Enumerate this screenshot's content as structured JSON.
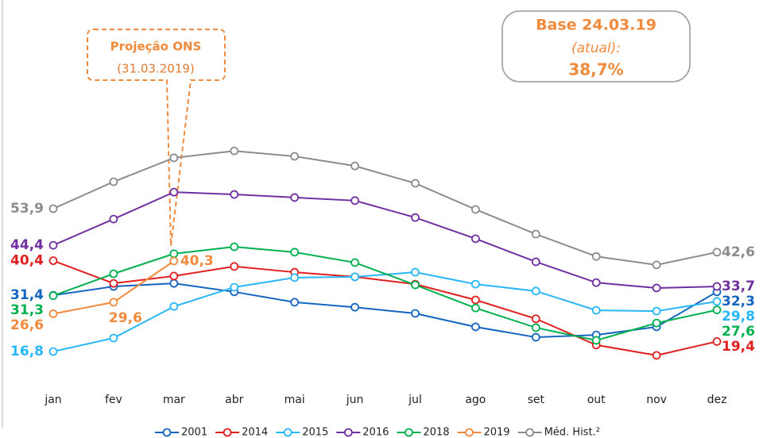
{
  "chart_data": {
    "type": "line",
    "categories": [
      "jan",
      "fev",
      "mar",
      "abr",
      "mai",
      "jun",
      "jul",
      "ago",
      "set",
      "out",
      "nov",
      "dez"
    ],
    "ylim": [
      10,
      75
    ],
    "series": [
      {
        "name": "2001",
        "color": "#1565c0",
        "values": [
          31.4,
          33.7,
          34.5,
          32.3,
          29.6,
          28.3,
          26.7,
          23.2,
          20.5,
          21.1,
          23.2,
          32.3
        ],
        "value_labels": [
          "31,4",
          null,
          null,
          null,
          null,
          null,
          null,
          null,
          null,
          null,
          null,
          "32,3"
        ]
      },
      {
        "name": "2014",
        "color": "#e02020",
        "values": [
          40.4,
          34.5,
          36.4,
          38.9,
          37.4,
          36.2,
          34.3,
          30.2,
          25.3,
          18.5,
          15.8,
          19.4
        ],
        "value_labels": [
          "40,4",
          null,
          null,
          null,
          null,
          null,
          null,
          null,
          null,
          null,
          null,
          "19,4"
        ]
      },
      {
        "name": "2015",
        "color": "#29b6f6",
        "values": [
          16.8,
          20.3,
          28.5,
          33.5,
          36.0,
          36.2,
          37.4,
          34.3,
          32.5,
          27.5,
          27.3,
          29.8
        ],
        "value_labels": [
          "16,8",
          null,
          null,
          null,
          null,
          null,
          null,
          null,
          null,
          null,
          null,
          "29,8"
        ]
      },
      {
        "name": "2016",
        "color": "#7030a0",
        "values": [
          44.4,
          51.2,
          58.2,
          57.6,
          56.8,
          56.0,
          51.6,
          46.1,
          40.1,
          34.7,
          33.3,
          33.7
        ],
        "value_labels": [
          "44,4",
          null,
          null,
          null,
          null,
          null,
          null,
          null,
          null,
          null,
          null,
          "33,7"
        ]
      },
      {
        "name": "2018",
        "color": "#00b050",
        "values": [
          31.3,
          37.0,
          42.2,
          44.0,
          42.6,
          39.9,
          34.1,
          28.1,
          23.0,
          19.7,
          24.2,
          27.6
        ],
        "value_labels": [
          "31,3",
          null,
          null,
          null,
          null,
          null,
          null,
          null,
          null,
          null,
          null,
          "27,6"
        ]
      },
      {
        "name": "2019",
        "color": "#f08a3c",
        "values": [
          26.6,
          29.6,
          40.3,
          null,
          null,
          null,
          null,
          null,
          null,
          null,
          null,
          null
        ],
        "value_labels": [
          "26,6",
          "29,6",
          "40,3",
          null,
          null,
          null,
          null,
          null,
          null,
          null,
          null,
          null
        ]
      },
      {
        "name": "Méd. Hist.²",
        "color": "#8c8c8c",
        "values": [
          53.9,
          60.9,
          67.1,
          68.9,
          67.5,
          65.0,
          60.5,
          53.7,
          47.3,
          41.5,
          39.3,
          42.6
        ],
        "value_labels": [
          "53,9",
          null,
          null,
          null,
          null,
          null,
          null,
          null,
          null,
          null,
          null,
          "42,6"
        ]
      }
    ],
    "annotations": [
      {
        "lines": [
          "Projeção ONS",
          "(31.03.2019)"
        ]
      },
      {
        "lines": [
          "Base 24.03.19",
          "(atual):",
          "38,7%"
        ]
      }
    ]
  }
}
